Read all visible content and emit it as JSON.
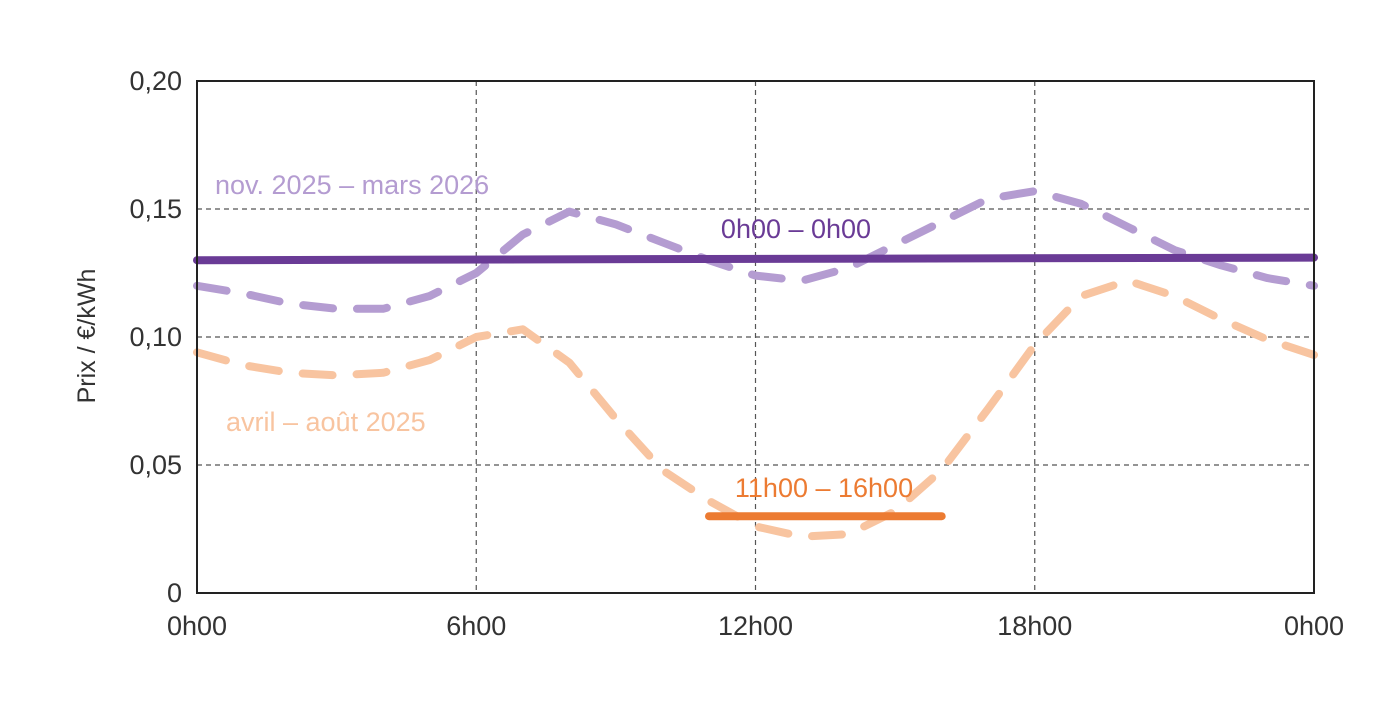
{
  "chart_data": {
    "type": "line",
    "title": "",
    "xlabel": "",
    "ylabel": "Prix / €/kWh",
    "x_tick_labels": [
      "0h00",
      "6h00",
      "12h00",
      "18h00",
      "0h00"
    ],
    "y_tick_labels": [
      "0",
      "0,05",
      "0,10",
      "0,15",
      "0,20"
    ],
    "xlim": [
      0,
      24
    ],
    "ylim": [
      0,
      0.2
    ],
    "grid": "dashed, at major ticks",
    "series": [
      {
        "name": "nov. 2025 – mars 2026",
        "style": "dashed",
        "color": "#b49cd1",
        "x": [
          0,
          1,
          2,
          3,
          4,
          5,
          6,
          7,
          8,
          9,
          10,
          11,
          12,
          13,
          14,
          15,
          16,
          17,
          18,
          19,
          20,
          21,
          22,
          23,
          24
        ],
        "y": [
          0.12,
          0.117,
          0.113,
          0.111,
          0.111,
          0.116,
          0.125,
          0.14,
          0.149,
          0.144,
          0.137,
          0.13,
          0.124,
          0.122,
          0.127,
          0.136,
          0.145,
          0.154,
          0.157,
          0.152,
          0.143,
          0.134,
          0.128,
          0.123,
          0.12
        ]
      },
      {
        "name": "avril – août 2025",
        "style": "dashed",
        "color": "#f8c4a0",
        "x": [
          0,
          1,
          2,
          3,
          4,
          5,
          6,
          7,
          8,
          9,
          10,
          11,
          12,
          13,
          14,
          15,
          16,
          17,
          18,
          19,
          20,
          21,
          22,
          23,
          24
        ],
        "y": [
          0.094,
          0.089,
          0.086,
          0.085,
          0.086,
          0.091,
          0.1,
          0.103,
          0.09,
          0.068,
          0.048,
          0.036,
          0.026,
          0.022,
          0.023,
          0.032,
          0.048,
          0.072,
          0.097,
          0.116,
          0.122,
          0.116,
          0.107,
          0.099,
          0.093
        ]
      },
      {
        "name": "0h00 – 0h00",
        "style": "solid",
        "color": "#6a3b96",
        "x": [
          0,
          24
        ],
        "y": [
          0.13,
          0.131
        ]
      },
      {
        "name": "11h00 – 16h00",
        "style": "solid",
        "color": "#ec7b32",
        "x": [
          11,
          16
        ],
        "y": [
          0.03,
          0.03
        ]
      }
    ],
    "annotations": [
      {
        "text": "nov. 2025 – mars 2026",
        "color": "#b49cd1"
      },
      {
        "text": "0h00 – 0h00",
        "color": "#6a3b96"
      },
      {
        "text": "avril – août 2025",
        "color": "#f8c4a0"
      },
      {
        "text": "11h00 – 16h00",
        "color": "#ec7b32"
      }
    ]
  }
}
